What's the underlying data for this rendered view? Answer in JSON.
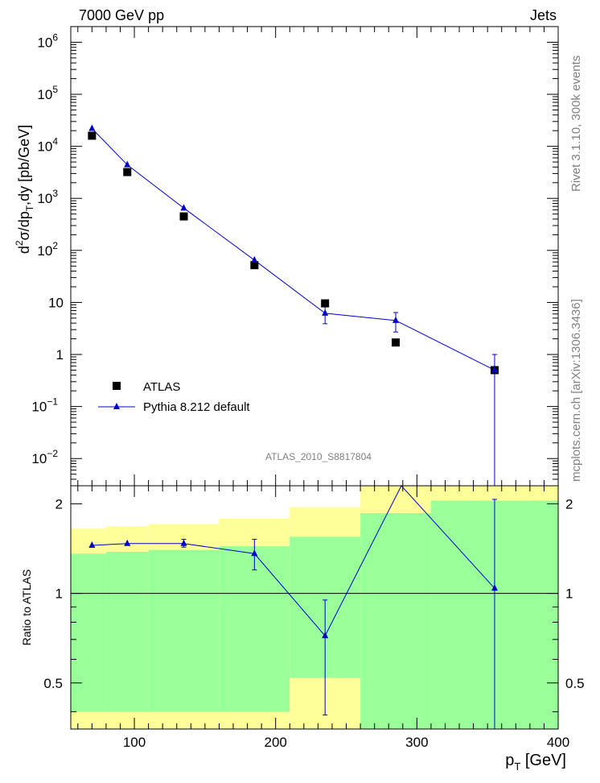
{
  "header": {
    "left": "7000 GeV pp",
    "right": "Jets"
  },
  "side_labels": {
    "top": "Rivet 3.1.10, 300k events",
    "bottom": "mcplots.cern.ch [arXiv:1306.3436]"
  },
  "analysis_id": "ATLAS_2010_S8817804",
  "colors": {
    "mc": "#0000cc",
    "data": "#000000",
    "band_inner": "#99ff99",
    "band_outer": "#ffff99"
  },
  "chart_data": [
    {
      "type": "scatter",
      "panel": "main",
      "ylabel": "d²σ/dp_T,dy [pb/GeV]",
      "y_scale": "log",
      "xlim": [
        55,
        400
      ],
      "ylim": [
        0.003,
        2000000
      ],
      "y_ticks": [
        {
          "v": 0.01,
          "base": "10",
          "exp": "−2"
        },
        {
          "v": 0.1,
          "base": "10",
          "exp": "−1"
        },
        {
          "v": 1,
          "base": "1",
          "exp": ""
        },
        {
          "v": 10,
          "base": "10",
          "exp": ""
        },
        {
          "v": 100,
          "base": "10",
          "exp": "2"
        },
        {
          "v": 1000,
          "base": "10",
          "exp": "3"
        },
        {
          "v": 10000,
          "base": "10",
          "exp": "4"
        },
        {
          "v": 100000,
          "base": "10",
          "exp": "5"
        },
        {
          "v": 1000000,
          "base": "10",
          "exp": "6"
        }
      ],
      "legend": [
        "ATLAS",
        "Pythia 8.212 default"
      ],
      "legend_position": "bottom-left",
      "series": [
        {
          "name": "ATLAS",
          "marker": "square",
          "points": [
            {
              "x": 70,
              "y": 16000
            },
            {
              "x": 95,
              "y": 3200
            },
            {
              "x": 135,
              "y": 450
            },
            {
              "x": 185,
              "y": 52
            },
            {
              "x": 235,
              "y": 9.6
            },
            {
              "x": 285,
              "y": 1.7
            },
            {
              "x": 355,
              "y": 0.5
            }
          ]
        },
        {
          "name": "Pythia 8.212 default",
          "marker": "triangle",
          "points": [
            {
              "x": 70,
              "y": 22000,
              "ylo": 22000,
              "yhi": 22000
            },
            {
              "x": 95,
              "y": 4400,
              "ylo": 4400,
              "yhi": 4400
            },
            {
              "x": 135,
              "y": 650,
              "ylo": 650,
              "yhi": 650
            },
            {
              "x": 185,
              "y": 65,
              "ylo": 65,
              "yhi": 65
            },
            {
              "x": 235,
              "y": 6.2,
              "ylo": 3.9,
              "yhi": 8.5
            },
            {
              "x": 285,
              "y": 4.5,
              "ylo": 2.7,
              "yhi": 6.4
            },
            {
              "x": 355,
              "y": 0.5,
              "ylo": 0.0001,
              "yhi": 1.0
            }
          ]
        }
      ]
    },
    {
      "type": "scatter",
      "panel": "ratio",
      "ylabel": "Ratio to ATLAS",
      "xlabel": "p_T [GeV]",
      "y_scale": "log",
      "xlim": [
        55,
        400
      ],
      "ylim": [
        0.35,
        2.3
      ],
      "x_ticks": [
        100,
        200,
        300,
        400
      ],
      "y_ticks": [
        0.5,
        1,
        2
      ],
      "reference_line": 1,
      "bands": [
        {
          "x0": 55,
          "x1": 80,
          "inner": [
            0.4,
            1.36
          ],
          "outer": [
            0.33,
            1.65
          ]
        },
        {
          "x0": 80,
          "x1": 110,
          "inner": [
            0.4,
            1.38
          ],
          "outer": [
            0.33,
            1.68
          ]
        },
        {
          "x0": 110,
          "x1": 160,
          "inner": [
            0.4,
            1.4
          ],
          "outer": [
            0.33,
            1.71
          ]
        },
        {
          "x0": 160,
          "x1": 210,
          "inner": [
            0.4,
            1.44
          ],
          "outer": [
            0.33,
            1.78
          ]
        },
        {
          "x0": 210,
          "x1": 260,
          "inner": [
            0.52,
            1.55
          ],
          "outer": [
            0.33,
            1.95
          ]
        },
        {
          "x0": 260,
          "x1": 310,
          "inner": [
            0.33,
            1.86
          ],
          "outer": [
            0.33,
            2.3
          ]
        },
        {
          "x0": 310,
          "x1": 400,
          "inner": [
            0.33,
            2.05
          ],
          "outer": [
            0.33,
            2.3
          ]
        }
      ],
      "series": [
        {
          "name": "Pythia 8.212 default",
          "points": [
            {
              "x": 70,
              "y": 1.45,
              "ylo": 1.45,
              "yhi": 1.45
            },
            {
              "x": 95,
              "y": 1.47,
              "ylo": 1.47,
              "yhi": 1.47
            },
            {
              "x": 135,
              "y": 1.47,
              "ylo": 1.43,
              "yhi": 1.52
            },
            {
              "x": 185,
              "y": 1.36,
              "ylo": 1.2,
              "yhi": 1.52
            },
            {
              "x": 235,
              "y": 0.72,
              "ylo": 0.39,
              "yhi": 0.95
            },
            {
              "x": 289,
              "y": 2.32,
              "ylo": 2.32,
              "yhi": 2.32
            },
            {
              "x": 355,
              "y": 1.04,
              "ylo": 0.2,
              "yhi": 2.07
            }
          ]
        }
      ]
    }
  ]
}
